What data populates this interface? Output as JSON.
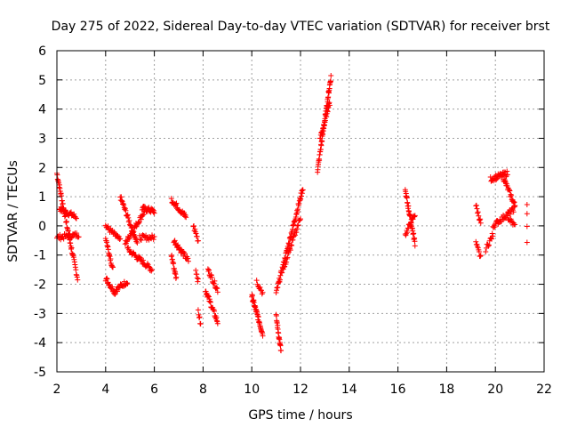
{
  "chart_data": {
    "type": "scatter",
    "title": "Day 275 of 2022, Sidereal Day-to-day VTEC variation (SDTVAR) for receiver brst",
    "xlabel": "GPS time / hours",
    "ylabel": "SDTVAR / TECUs",
    "xlim": [
      2,
      22
    ],
    "ylim": [
      -5,
      6
    ],
    "xticks": [
      "2",
      "4",
      "6",
      "8",
      "10",
      "12",
      "14",
      "16",
      "18",
      "20",
      "22"
    ],
    "yticks": [
      "-5",
      "-4",
      "-3",
      "-2",
      "-1",
      "0",
      "1",
      "2",
      "3",
      "4",
      "5",
      "6"
    ],
    "grid": true,
    "marker": "+",
    "series_color": "#ff0000",
    "segments": [
      {
        "x0": 2.0,
        "x1": 2.6,
        "y0": 1.8,
        "y1": -0.8,
        "n": 40
      },
      {
        "x0": 2.1,
        "x1": 2.8,
        "y0": 0.6,
        "y1": 0.3,
        "n": 30
      },
      {
        "x0": 2.6,
        "x1": 2.85,
        "y0": -0.8,
        "y1": -1.8,
        "n": 15
      },
      {
        "x0": 2.0,
        "x1": 2.9,
        "y0": -0.4,
        "y1": -0.3,
        "n": 30
      },
      {
        "x0": 4.0,
        "x1": 4.4,
        "y0": -1.8,
        "y1": -2.3,
        "n": 20
      },
      {
        "x0": 4.4,
        "x1": 4.9,
        "y0": -2.2,
        "y1": -1.9,
        "n": 20
      },
      {
        "x0": 4.0,
        "x1": 4.6,
        "y0": 0.0,
        "y1": -0.5,
        "n": 25
      },
      {
        "x0": 4.6,
        "x1": 5.3,
        "y0": 1.0,
        "y1": -0.6,
        "n": 35
      },
      {
        "x0": 4.8,
        "x1": 5.6,
        "y0": -0.6,
        "y1": 0.5,
        "n": 35
      },
      {
        "x0": 5.5,
        "x1": 6.0,
        "y0": 0.6,
        "y1": 0.5,
        "n": 25
      },
      {
        "x0": 4.9,
        "x1": 5.9,
        "y0": -0.8,
        "y1": -1.5,
        "n": 40
      },
      {
        "x0": 4.0,
        "x1": 4.3,
        "y0": -0.4,
        "y1": -1.5,
        "n": 20
      },
      {
        "x0": 5.4,
        "x1": 6.0,
        "y0": -0.4,
        "y1": -0.4,
        "n": 20
      },
      {
        "x0": 6.7,
        "x1": 7.3,
        "y0": 0.9,
        "y1": 0.3,
        "n": 30
      },
      {
        "x0": 6.7,
        "x1": 6.9,
        "y0": -1.0,
        "y1": -1.8,
        "n": 15
      },
      {
        "x0": 6.8,
        "x1": 7.4,
        "y0": -0.5,
        "y1": -1.2,
        "n": 30
      },
      {
        "x0": 7.6,
        "x1": 7.8,
        "y0": 0.0,
        "y1": -0.5,
        "n": 10
      },
      {
        "x0": 7.7,
        "x1": 7.8,
        "y0": -1.5,
        "y1": -1.9,
        "n": 6
      },
      {
        "x0": 7.8,
        "x1": 7.9,
        "y0": -2.9,
        "y1": -3.4,
        "n": 6
      },
      {
        "x0": 8.2,
        "x1": 8.6,
        "y0": -1.5,
        "y1": -2.2,
        "n": 20
      },
      {
        "x0": 8.1,
        "x1": 8.6,
        "y0": -2.2,
        "y1": -3.3,
        "n": 30
      },
      {
        "x0": 10.0,
        "x1": 10.45,
        "y0": -2.4,
        "y1": -3.7,
        "n": 40
      },
      {
        "x0": 10.2,
        "x1": 10.45,
        "y0": -1.9,
        "y1": -2.3,
        "n": 10
      },
      {
        "x0": 11.0,
        "x1": 11.2,
        "y0": -3.1,
        "y1": -4.3,
        "n": 20
      },
      {
        "x0": 11.0,
        "x1": 12.1,
        "y0": -2.3,
        "y1": 1.3,
        "n": 70
      },
      {
        "x0": 11.3,
        "x1": 12.0,
        "y0": -1.5,
        "y1": 0.3,
        "n": 30
      },
      {
        "x0": 12.7,
        "x1": 13.25,
        "y0": 1.9,
        "y1": 5.1,
        "n": 55
      },
      {
        "x0": 12.8,
        "x1": 13.2,
        "y0": 3.0,
        "y1": 4.2,
        "n": 25
      },
      {
        "x0": 16.3,
        "x1": 16.7,
        "y0": 1.2,
        "y1": -0.6,
        "n": 35
      },
      {
        "x0": 16.3,
        "x1": 16.7,
        "y0": -0.3,
        "y1": 0.4,
        "n": 20
      },
      {
        "x0": 19.2,
        "x1": 19.4,
        "y0": 0.7,
        "y1": 0.1,
        "n": 10
      },
      {
        "x0": 19.2,
        "x1": 19.4,
        "y0": -0.6,
        "y1": -1.1,
        "n": 10
      },
      {
        "x0": 19.6,
        "x1": 19.9,
        "y0": -0.8,
        "y1": -0.3,
        "n": 12
      },
      {
        "x0": 19.8,
        "x1": 20.5,
        "y0": 1.6,
        "y1": 1.8,
        "n": 30
      },
      {
        "x0": 20.3,
        "x1": 20.8,
        "y0": 1.7,
        "y1": 0.7,
        "n": 25
      },
      {
        "x0": 19.9,
        "x1": 20.8,
        "y0": 0.0,
        "y1": 0.6,
        "n": 35
      },
      {
        "x0": 20.5,
        "x1": 20.8,
        "y0": 0.3,
        "y1": 0.0,
        "n": 12
      },
      {
        "x0": 21.3,
        "x1": 21.3,
        "y0": 0.8,
        "y1": -0.5,
        "n": 4
      }
    ]
  }
}
